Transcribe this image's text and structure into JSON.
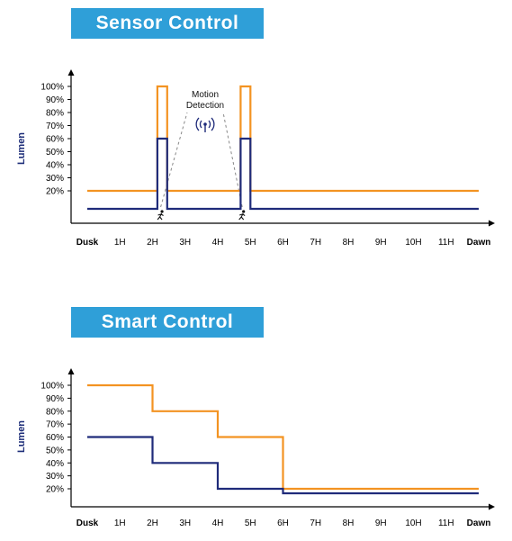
{
  "chart_data": [
    {
      "type": "line",
      "title": "Sensor Control",
      "ylabel": "Lumen",
      "xlabel": "",
      "x_ticks": [
        "Dusk",
        "1H",
        "2H",
        "3H",
        "4H",
        "5H",
        "6H",
        "7H",
        "8H",
        "9H",
        "10H",
        "11H",
        "Dawn"
      ],
      "y_ticks": [
        "20%",
        "30%",
        "40%",
        "50%",
        "60%",
        "70%",
        "80%",
        "90%",
        "100%"
      ],
      "ylim": [
        0,
        100
      ],
      "xlim": [
        0,
        12
      ],
      "grid": false,
      "annotation": [
        "Motion",
        "Detection"
      ],
      "motion_events_hours": [
        2.25,
        4.75
      ],
      "series": [
        {
          "color": "#f39322",
          "points": [
            [
              0,
              20
            ],
            [
              2.15,
              20
            ],
            [
              2.15,
              100
            ],
            [
              2.45,
              100
            ],
            [
              2.45,
              20
            ],
            [
              4.7,
              20
            ],
            [
              4.7,
              100
            ],
            [
              5.0,
              100
            ],
            [
              5.0,
              20
            ],
            [
              12,
              20
            ]
          ]
        },
        {
          "color": "#1f2b7a",
          "points": [
            [
              0,
              0
            ],
            [
              2.15,
              0
            ],
            [
              2.15,
              60
            ],
            [
              2.45,
              60
            ],
            [
              2.45,
              0
            ],
            [
              4.7,
              0
            ],
            [
              4.7,
              60
            ],
            [
              5.0,
              60
            ],
            [
              5.0,
              0
            ],
            [
              12,
              0
            ]
          ]
        }
      ]
    },
    {
      "type": "line",
      "title": "Smart Control",
      "ylabel": "Lumen",
      "xlabel": "",
      "x_ticks": [
        "Dusk",
        "1H",
        "2H",
        "3H",
        "4H",
        "5H",
        "6H",
        "7H",
        "8H",
        "9H",
        "10H",
        "11H",
        "Dawn"
      ],
      "y_ticks": [
        "20%",
        "30%",
        "40%",
        "50%",
        "60%",
        "70%",
        "80%",
        "90%",
        "100%"
      ],
      "ylim": [
        0,
        100
      ],
      "xlim": [
        0,
        12
      ],
      "grid": false,
      "series": [
        {
          "color": "#f39322",
          "points": [
            [
              0,
              100
            ],
            [
              2,
              100
            ],
            [
              2,
              80
            ],
            [
              4,
              80
            ],
            [
              4,
              60
            ],
            [
              6,
              60
            ],
            [
              6,
              20
            ],
            [
              12,
              20
            ]
          ]
        },
        {
          "color": "#1f2b7a",
          "points": [
            [
              0,
              60
            ],
            [
              2,
              60
            ],
            [
              2,
              40
            ],
            [
              4,
              40
            ],
            [
              4,
              20
            ],
            [
              6,
              20
            ],
            [
              6,
              15
            ],
            [
              12,
              15
            ]
          ]
        }
      ]
    }
  ]
}
